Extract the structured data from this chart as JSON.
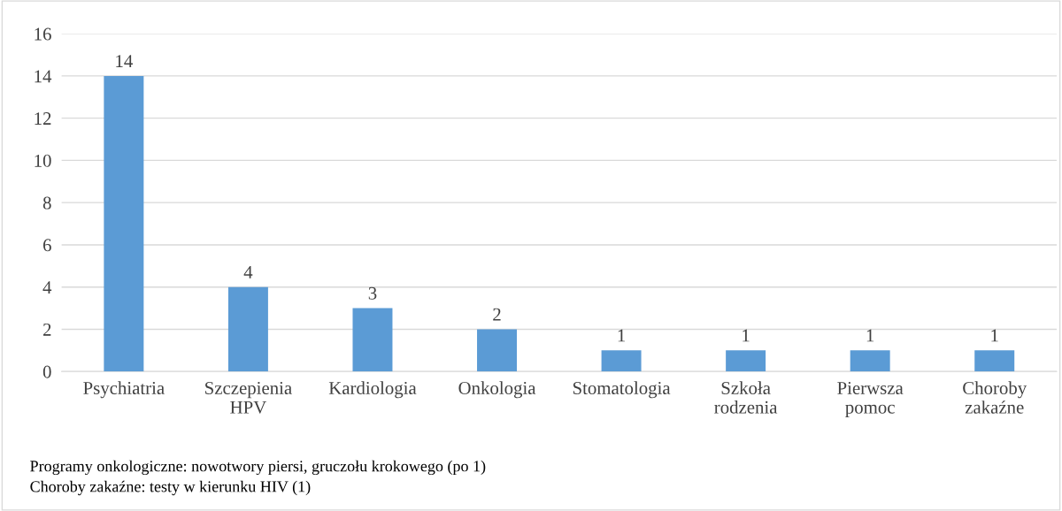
{
  "chart_data": {
    "type": "bar",
    "categories": [
      "Psychiatria",
      "Szczepienia\nHPV",
      "Kardiologia",
      "Onkologia",
      "Stomatologia",
      "Szkoła\nrodzenia",
      "Pierwsza\npomoc",
      "Choroby\nzakaźne"
    ],
    "values": [
      14,
      4,
      3,
      2,
      1,
      1,
      1,
      1
    ],
    "color": "#5b9bd5",
    "ylim": [
      0,
      16
    ],
    "yticks": [
      0,
      2,
      4,
      6,
      8,
      10,
      12,
      14,
      16
    ],
    "grid": "y",
    "data_labels": true,
    "annotations": [
      "Programy onkologiczne: nowotwory piersi, gruczołu krokowego (po 1)",
      "Choroby zakaźne: testy w kierunku HIV (1)"
    ]
  }
}
